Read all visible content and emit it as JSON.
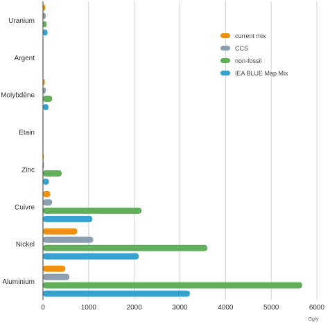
{
  "chart_data": {
    "type": "bar",
    "orientation": "horizontal",
    "categories": [
      "Uranium",
      "Argent",
      "Molybdène",
      "Etain",
      "Zinc",
      "Cuivre",
      "Nickel",
      "Aluminium"
    ],
    "series": [
      {
        "name": "current mix",
        "color": "#F0900C",
        "values": [
          50,
          0,
          40,
          0,
          15,
          160,
          750,
          490
        ]
      },
      {
        "name": "CCS",
        "color": "#8C9FB0",
        "values": [
          60,
          0,
          60,
          0,
          20,
          200,
          1100,
          580
        ]
      },
      {
        "name": "non-fossil",
        "color": "#62AE5A",
        "values": [
          80,
          0,
          200,
          0,
          410,
          2160,
          3600,
          5680
        ]
      },
      {
        "name": "IEA BLUE Map Mix",
        "color": "#35A2D0",
        "values": [
          100,
          0,
          120,
          0,
          130,
          1080,
          2100,
          3220
        ]
      }
    ],
    "xlim": [
      0,
      6000
    ],
    "xticks": [
      "0",
      "1000",
      "2000",
      "3000",
      "4000",
      "5000",
      "6000"
    ],
    "xlabel": "Gg/y",
    "ylabel": "",
    "title": "",
    "grid": "vertical",
    "legend_position": "top-right"
  }
}
